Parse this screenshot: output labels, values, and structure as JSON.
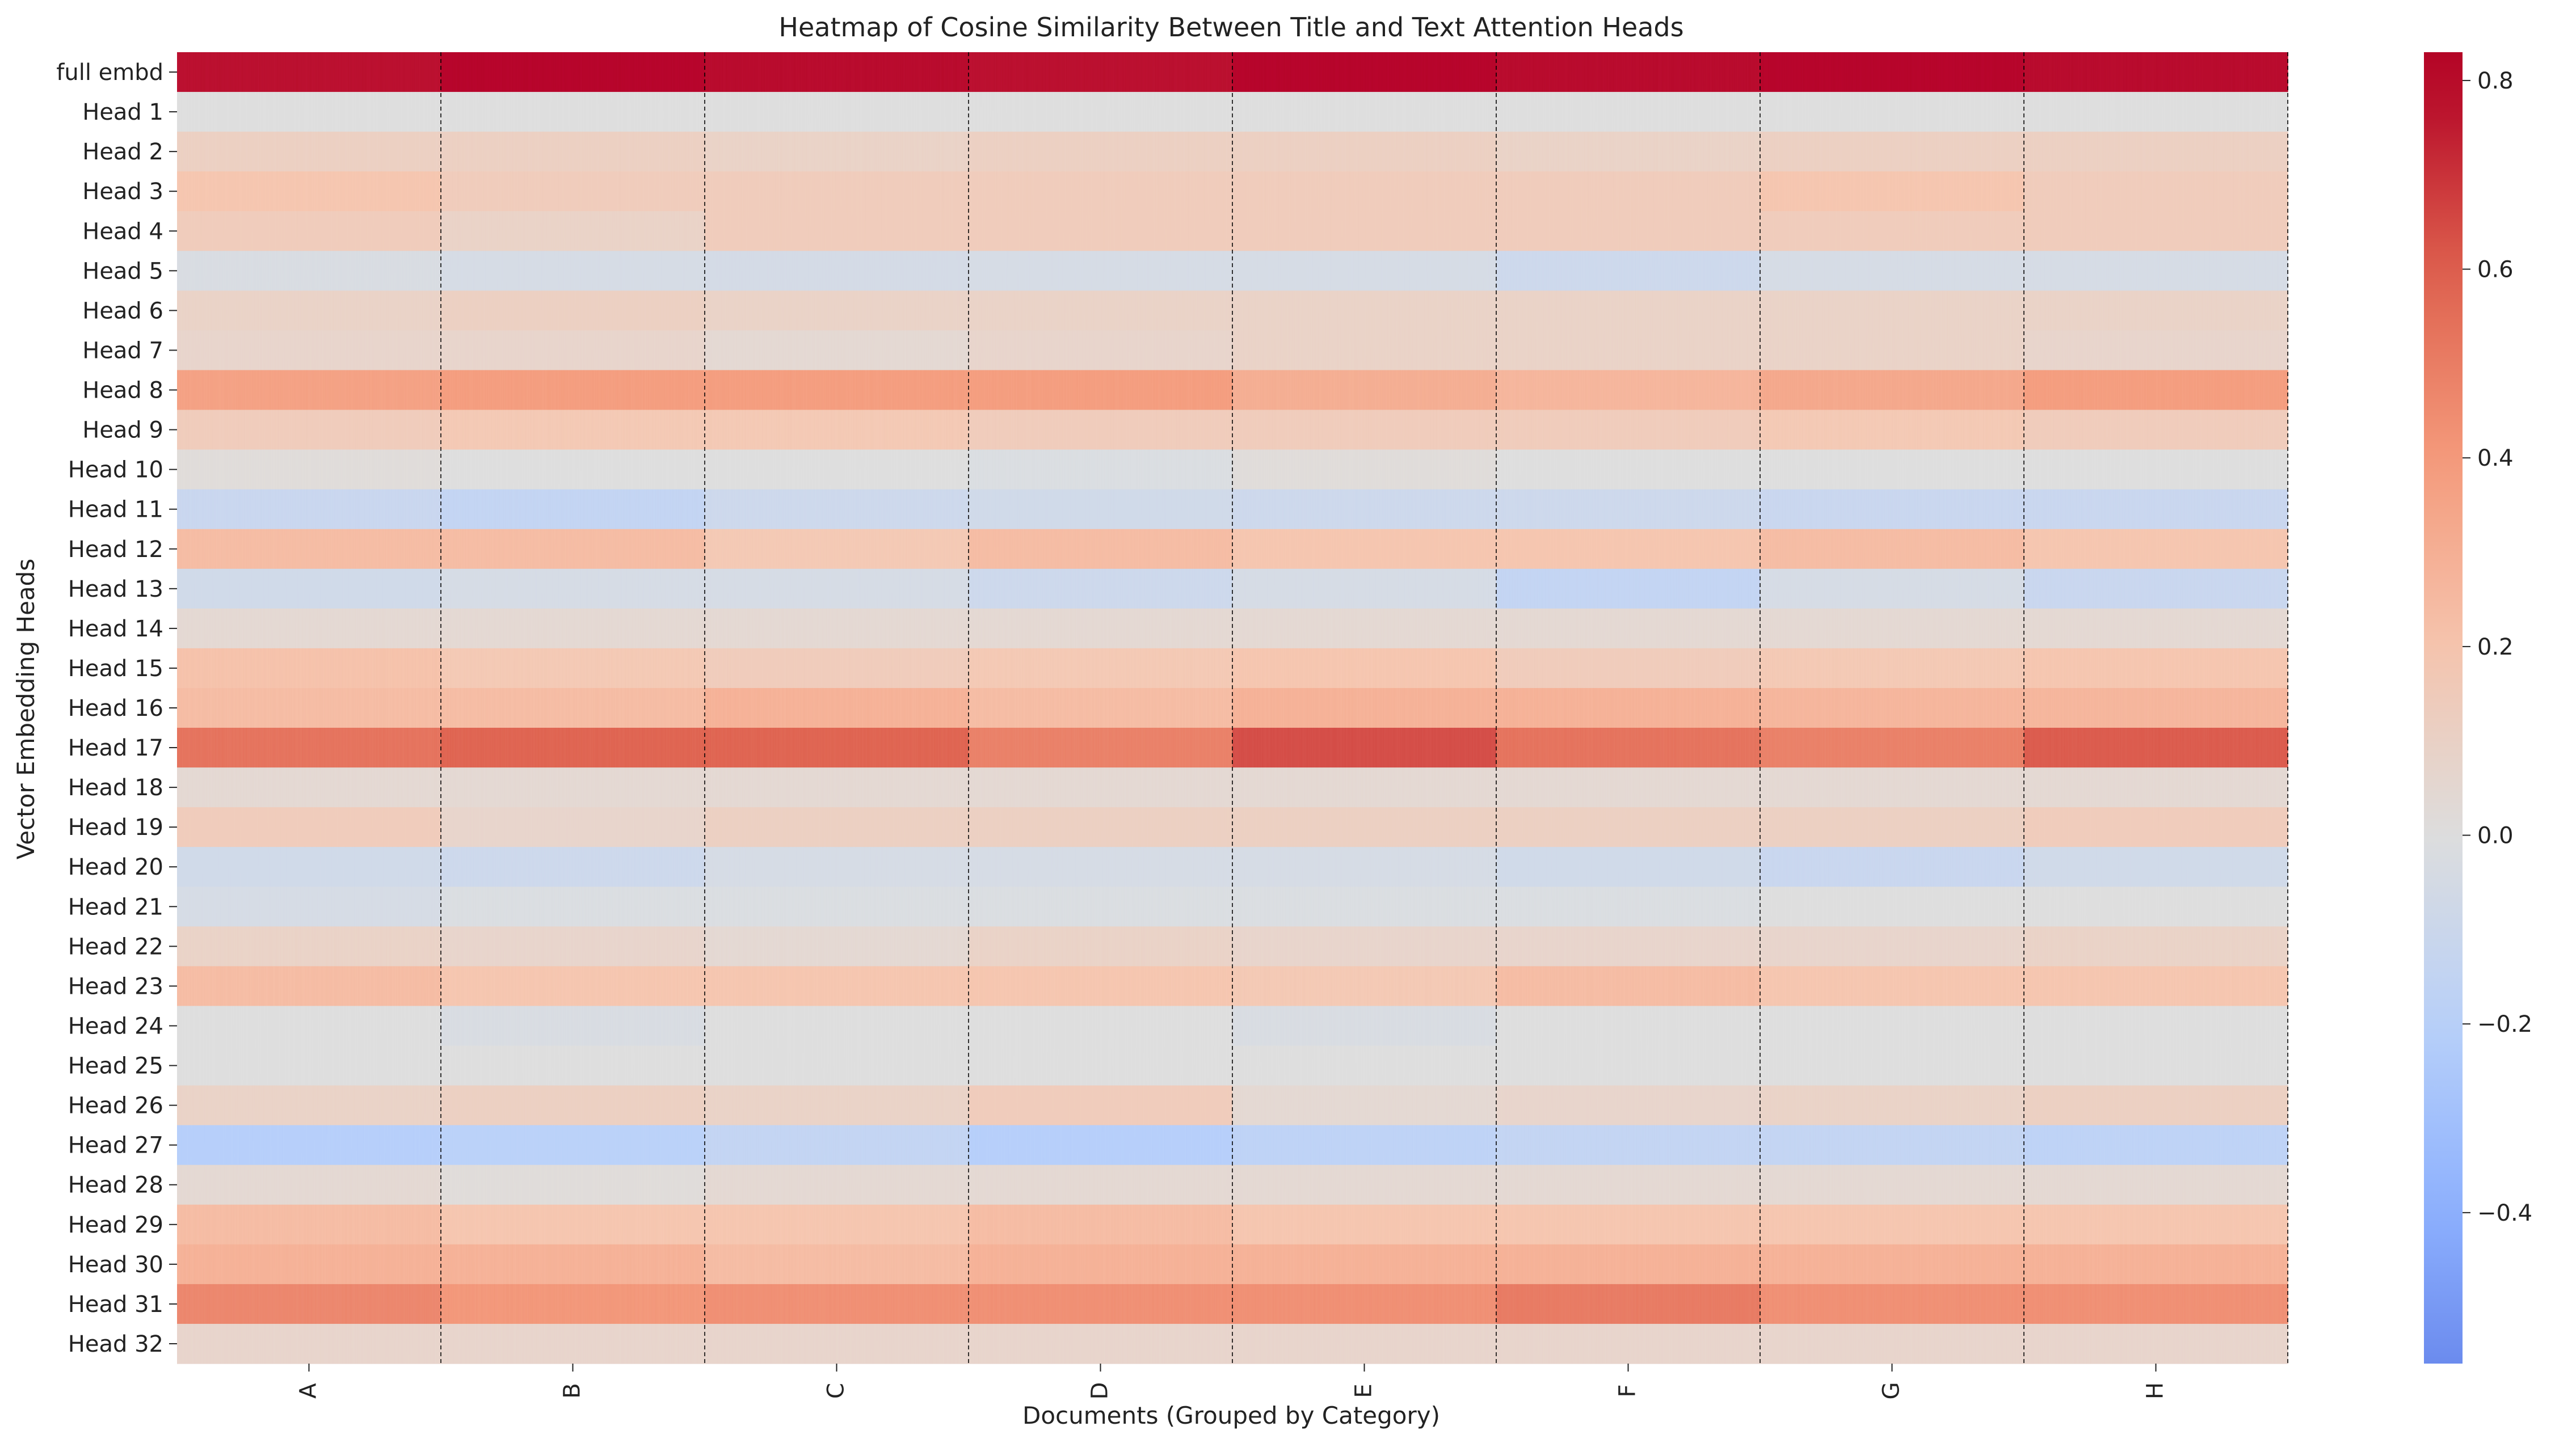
{
  "chart_data": {
    "type": "heatmap",
    "title": "Heatmap of Cosine Similarity Between Title and Text Attention Heads",
    "xlabel": "Documents (Grouped by Category)",
    "ylabel": "Vector Embedding Heads",
    "categories": [
      "A",
      "B",
      "C",
      "D",
      "E",
      "F",
      "G",
      "H"
    ],
    "rows": [
      "full embd",
      "Head 1",
      "Head 2",
      "Head 3",
      "Head 4",
      "Head 5",
      "Head 6",
      "Head 7",
      "Head 8",
      "Head 9",
      "Head 10",
      "Head 11",
      "Head 12",
      "Head 13",
      "Head 14",
      "Head 15",
      "Head 16",
      "Head 17",
      "Head 18",
      "Head 19",
      "Head 20",
      "Head 21",
      "Head 22",
      "Head 23",
      "Head 24",
      "Head 25",
      "Head 26",
      "Head 27",
      "Head 28",
      "Head 29",
      "Head 30",
      "Head 31",
      "Head 32"
    ],
    "values": [
      [
        0.78,
        0.8,
        0.79,
        0.78,
        0.8,
        0.79,
        0.8,
        0.79
      ],
      [
        0.0,
        0.0,
        0.0,
        0.0,
        0.0,
        0.0,
        0.0,
        0.0
      ],
      [
        0.12,
        0.12,
        0.1,
        0.12,
        0.12,
        0.1,
        0.12,
        0.12
      ],
      [
        0.2,
        0.15,
        0.15,
        0.15,
        0.15,
        0.15,
        0.2,
        0.15
      ],
      [
        0.15,
        0.1,
        0.15,
        0.15,
        0.15,
        0.15,
        0.15,
        0.15
      ],
      [
        -0.03,
        -0.05,
        -0.06,
        -0.05,
        -0.05,
        -0.1,
        -0.05,
        -0.05
      ],
      [
        0.1,
        0.12,
        0.1,
        0.1,
        0.1,
        0.1,
        0.1,
        0.1
      ],
      [
        0.08,
        0.08,
        0.05,
        0.08,
        0.1,
        0.1,
        0.1,
        0.08
      ],
      [
        0.38,
        0.4,
        0.4,
        0.4,
        0.32,
        0.28,
        0.35,
        0.4
      ],
      [
        0.15,
        0.18,
        0.18,
        0.15,
        0.15,
        0.15,
        0.18,
        0.15
      ],
      [
        0.02,
        0.0,
        0.0,
        -0.02,
        0.02,
        0.0,
        0.0,
        0.0
      ],
      [
        -0.12,
        -0.15,
        -0.1,
        -0.08,
        -0.1,
        -0.1,
        -0.12,
        -0.12
      ],
      [
        0.25,
        0.25,
        0.18,
        0.25,
        0.2,
        0.2,
        0.25,
        0.2
      ],
      [
        -0.08,
        -0.05,
        -0.05,
        -0.1,
        -0.05,
        -0.15,
        -0.05,
        -0.12
      ],
      [
        0.05,
        0.05,
        0.05,
        0.05,
        0.05,
        0.05,
        0.05,
        0.05
      ],
      [
        0.22,
        0.18,
        0.15,
        0.18,
        0.2,
        0.15,
        0.18,
        0.2
      ],
      [
        0.25,
        0.25,
        0.3,
        0.25,
        0.3,
        0.3,
        0.28,
        0.28
      ],
      [
        0.55,
        0.6,
        0.6,
        0.5,
        0.65,
        0.55,
        0.5,
        0.62
      ],
      [
        0.05,
        0.05,
        0.05,
        0.05,
        0.05,
        0.05,
        0.05,
        0.05
      ],
      [
        0.15,
        0.08,
        0.12,
        0.12,
        0.12,
        0.12,
        0.12,
        0.15
      ],
      [
        -0.08,
        -0.1,
        -0.05,
        -0.05,
        -0.05,
        -0.08,
        -0.12,
        -0.08
      ],
      [
        -0.05,
        -0.02,
        -0.02,
        -0.02,
        -0.02,
        -0.02,
        0.0,
        0.0
      ],
      [
        0.1,
        0.08,
        0.05,
        0.1,
        0.08,
        0.08,
        0.08,
        0.1
      ],
      [
        0.25,
        0.2,
        0.2,
        0.2,
        0.18,
        0.25,
        0.2,
        0.2
      ],
      [
        0.0,
        -0.03,
        0.0,
        0.0,
        -0.03,
        0.0,
        0.0,
        0.0
      ],
      [
        0.0,
        0.0,
        0.0,
        0.0,
        0.0,
        0.0,
        0.0,
        0.0
      ],
      [
        0.1,
        0.12,
        0.1,
        0.15,
        0.05,
        0.08,
        0.1,
        0.12
      ],
      [
        -0.22,
        -0.2,
        -0.15,
        -0.22,
        -0.18,
        -0.15,
        -0.15,
        -0.18
      ],
      [
        0.05,
        0.02,
        0.05,
        0.05,
        0.05,
        0.05,
        0.05,
        0.05
      ],
      [
        0.25,
        0.2,
        0.2,
        0.25,
        0.2,
        0.2,
        0.2,
        0.2
      ],
      [
        0.3,
        0.3,
        0.25,
        0.3,
        0.3,
        0.3,
        0.3,
        0.3
      ],
      [
        0.48,
        0.42,
        0.45,
        0.45,
        0.45,
        0.52,
        0.45,
        0.45
      ],
      [
        0.08,
        0.08,
        0.08,
        0.08,
        0.08,
        0.08,
        0.08,
        0.08
      ]
    ],
    "colorbar": {
      "colormap": "coolwarm",
      "range": [
        -0.56,
        0.83
      ],
      "ticks": [
        -0.4,
        -0.2,
        0.0,
        0.2,
        0.4,
        0.6,
        0.8
      ],
      "tick_labels": [
        "−0.4",
        "−0.2",
        "0.0",
        "0.2",
        "0.4",
        "0.6",
        "0.8"
      ]
    },
    "group_separators": "dashed",
    "grid": false
  }
}
